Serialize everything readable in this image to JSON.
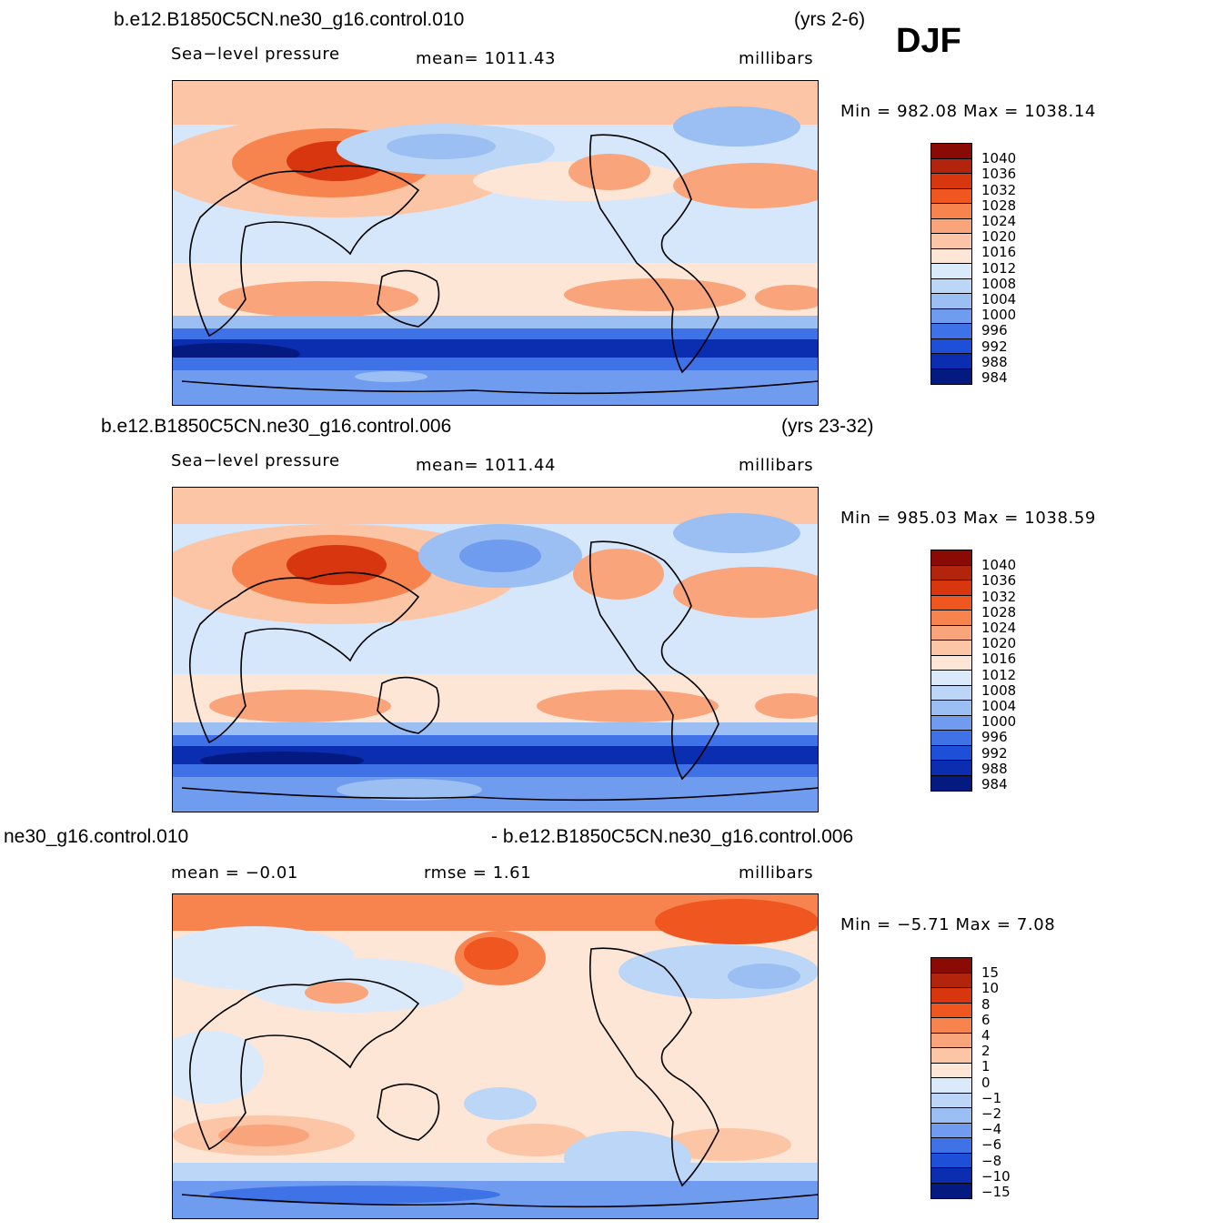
{
  "season": "DJF",
  "panels": [
    {
      "case": "b.e12.B1850C5CN.ne30_g16.control.010",
      "years": "(yrs 2-6)",
      "variable": "Sea−level pressure",
      "stat": "mean=  1011.43",
      "units": "millibars",
      "minmax": "Min  =  982.08  Max  =  1038.14",
      "colorbar_ticks": [
        "1040",
        "1036",
        "1032",
        "1028",
        "1024",
        "1020",
        "1016",
        "1012",
        "1008",
        "1004",
        "1000",
        "996",
        "992",
        "988",
        "984"
      ]
    },
    {
      "case": "b.e12.B1850C5CN.ne30_g16.control.006",
      "years": "(yrs 23-32)",
      "variable": "Sea−level pressure",
      "stat": "mean=  1011.44",
      "units": "millibars",
      "minmax": "Min  =  985.03  Max  =  1038.59",
      "colorbar_ticks": [
        "1040",
        "1036",
        "1032",
        "1028",
        "1024",
        "1020",
        "1016",
        "1012",
        "1008",
        "1004",
        "1000",
        "996",
        "992",
        "988",
        "984"
      ]
    },
    {
      "case_left": "ne30_g16.control.010",
      "case_right": "- b.e12.B1850C5CN.ne30_g16.control.006",
      "mean": "mean  =    −0.01",
      "rmse": "rmse  =      1.61",
      "units": "millibars",
      "minmax": "Min  =    −5.71  Max  =      7.08",
      "colorbar_ticks": [
        "15",
        "10",
        "8",
        "6",
        "4",
        "2",
        "1",
        "0",
        "−1",
        "−2",
        "−4",
        "−6",
        "−8",
        "−10",
        "−15"
      ]
    }
  ],
  "chart_data": {
    "type": "heatmap",
    "title": "Sea-level pressure, DJF",
    "units": "millibars",
    "projection": "cylindrical equidistant, centered on Pacific",
    "colorbar_colors": [
      "#8a0a06",
      "#b3240d",
      "#d8360f",
      "#f0561f",
      "#f7844f",
      "#f9a47b",
      "#fbc5a6",
      "#fde6d5",
      "#dbeafb",
      "#bcd6f7",
      "#9bbff3",
      "#6f9cef",
      "#3f72e6",
      "#1d4fd8",
      "#0b2eb0",
      "#041a80"
    ],
    "fields": [
      {
        "case": "control.010",
        "years": "2-6",
        "mean": 1011.43,
        "min": 982.08,
        "max": 1038.14,
        "colorbar_levels": [
          1040,
          1036,
          1032,
          1028,
          1024,
          1020,
          1016,
          1012,
          1008,
          1004,
          1000,
          996,
          992,
          988,
          984
        ]
      },
      {
        "case": "control.006",
        "years": "23-32",
        "mean": 1011.44,
        "min": 985.03,
        "max": 1038.59,
        "colorbar_levels": [
          1040,
          1036,
          1032,
          1028,
          1024,
          1020,
          1016,
          1012,
          1008,
          1004,
          1000,
          996,
          992,
          988,
          984
        ]
      },
      {
        "case": "control.010 - control.006",
        "mean": -0.01,
        "rmse": 1.61,
        "min": -5.71,
        "max": 7.08,
        "colorbar_levels": [
          15,
          10,
          8,
          6,
          4,
          2,
          1,
          0,
          -1,
          -2,
          -4,
          -6,
          -8,
          -10,
          -15
        ]
      }
    ]
  }
}
